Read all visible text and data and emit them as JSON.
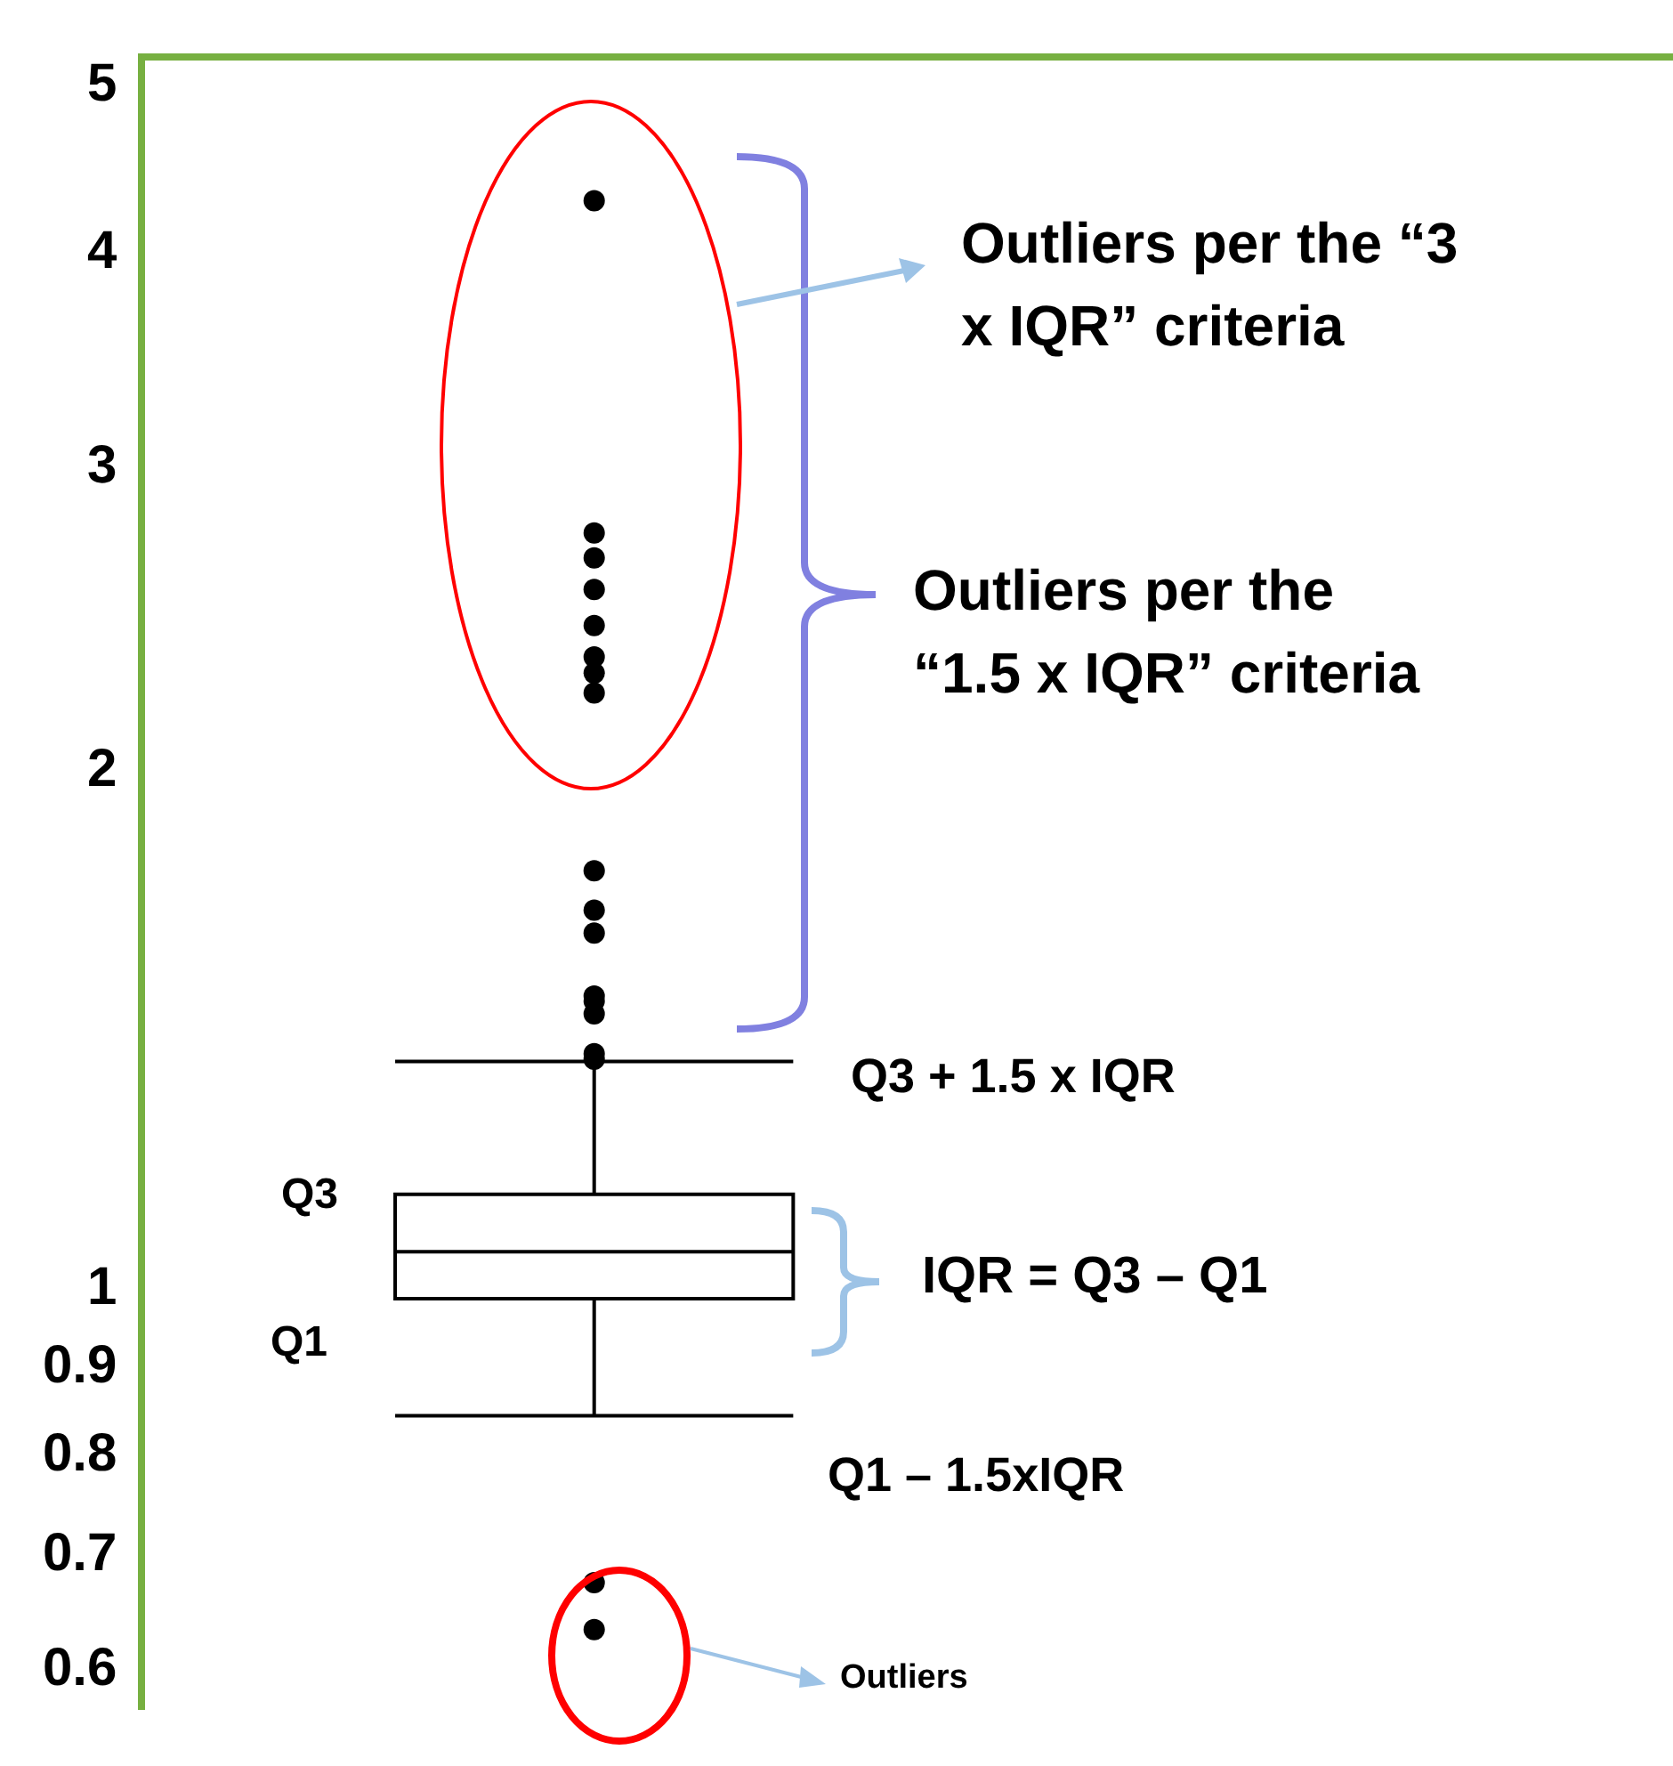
{
  "chart_data": {
    "type": "box",
    "categories": [
      null
    ],
    "boxes": [
      {
        "low": 0.844,
        "q1": 0.987,
        "median": 1.051,
        "q3": 1.135,
        "high": 1.356,
        "outliers": [
          0.634,
          0.675,
          1.36,
          1.37,
          1.445,
          1.47,
          1.48,
          1.61,
          1.66,
          1.75,
          2.22,
          2.28,
          2.33,
          2.43,
          2.55,
          2.66,
          2.75,
          4.29
        ]
      }
    ],
    "log": "y",
    "ylim": [
      0.57,
      5.2
    ],
    "yticks": [
      0.6,
      0.7,
      0.8,
      0.9,
      1,
      2,
      3,
      4,
      5
    ],
    "grid": false,
    "annotations": [
      "Outliers per the “3 x IQR” criteria",
      "Outliers per the “1.5 x IQR” criteria",
      "Q3 + 1.5 x IQR",
      "Q3",
      "Q1",
      "IQR = Q3 – Q1",
      "Q1 – 1.5xIQR",
      "Outliers"
    ]
  }
}
